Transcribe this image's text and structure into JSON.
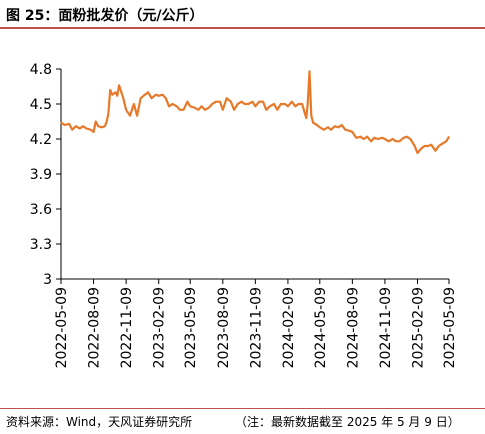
{
  "header": {
    "title": "图 25：面粉批发价（元/公斤）"
  },
  "footer": {
    "source": "资料来源：Wind，天风证券研究所",
    "note": "（注：最新数据截至 2025 年 5 月 9 日）"
  },
  "colors": {
    "line": "#e67a2a",
    "rule": "#c0504d",
    "axis": "#000000"
  },
  "chart_data": {
    "type": "line",
    "title": "图 25：面粉批发价（元/公斤）",
    "xlabel": "",
    "ylabel": "",
    "ylim": [
      3,
      4.8
    ],
    "grid": false,
    "y_ticks": [
      "4.8",
      "4.5",
      "4.2",
      "3.9",
      "3.6",
      "3.3",
      "3"
    ],
    "x_ticks": [
      "2022-05-09",
      "2022-08-09",
      "2022-11-09",
      "2023-02-09",
      "2023-05-09",
      "2023-08-09",
      "2023-11-09",
      "2024-02-09",
      "2024-05-09",
      "2024-08-09",
      "2024-11-09",
      "2025-02-09",
      "2025-05-09"
    ],
    "series": [
      {
        "x": [
          "2022-05-09",
          "2022-05-20",
          "2022-06-01",
          "2022-06-10",
          "2022-06-20",
          "2022-07-01",
          "2022-07-10",
          "2022-07-20",
          "2022-08-01",
          "2022-08-09",
          "2022-08-15",
          "2022-08-22",
          "2022-09-01",
          "2022-09-10",
          "2022-09-15",
          "2022-09-20",
          "2022-09-25",
          "2022-10-01",
          "2022-10-10",
          "2022-10-15",
          "2022-10-20",
          "2022-11-01",
          "2022-11-09",
          "2022-11-20",
          "2022-12-01",
          "2022-12-10",
          "2022-12-20",
          "2023-01-01",
          "2023-01-10",
          "2023-01-20",
          "2023-02-01",
          "2023-02-09",
          "2023-02-20",
          "2023-03-01",
          "2023-03-10",
          "2023-03-20",
          "2023-04-01",
          "2023-04-10",
          "2023-04-20",
          "2023-05-01",
          "2023-05-09",
          "2023-05-20",
          "2023-06-01",
          "2023-06-10",
          "2023-06-20",
          "2023-07-01",
          "2023-07-10",
          "2023-07-20",
          "2023-08-01",
          "2023-08-09",
          "2023-08-20",
          "2023-09-01",
          "2023-09-10",
          "2023-09-20",
          "2023-10-01",
          "2023-10-10",
          "2023-10-20",
          "2023-11-01",
          "2023-11-09",
          "2023-11-20",
          "2023-12-01",
          "2023-12-10",
          "2023-12-20",
          "2024-01-01",
          "2024-01-10",
          "2024-01-20",
          "2024-02-01",
          "2024-02-09",
          "2024-02-20",
          "2024-03-01",
          "2024-03-10",
          "2024-03-20",
          "2024-04-01",
          "2024-04-05",
          "2024-04-10",
          "2024-04-15",
          "2024-04-20",
          "2024-05-01",
          "2024-05-09",
          "2024-05-20",
          "2024-06-01",
          "2024-06-10",
          "2024-06-20",
          "2024-07-01",
          "2024-07-10",
          "2024-07-20",
          "2024-08-01",
          "2024-08-09",
          "2024-08-20",
          "2024-09-01",
          "2024-09-10",
          "2024-09-20",
          "2024-10-01",
          "2024-10-10",
          "2024-10-20",
          "2024-11-01",
          "2024-11-09",
          "2024-11-20",
          "2024-12-01",
          "2024-12-10",
          "2024-12-20",
          "2025-01-01",
          "2025-01-10",
          "2025-01-20",
          "2025-02-01",
          "2025-02-09",
          "2025-02-20",
          "2025-03-01",
          "2025-03-10",
          "2025-03-20",
          "2025-04-01",
          "2025-04-10",
          "2025-04-20",
          "2025-05-01",
          "2025-05-09"
        ],
        "values": [
          4.34,
          4.32,
          4.33,
          4.28,
          4.31,
          4.29,
          4.31,
          4.29,
          4.28,
          4.26,
          4.35,
          4.31,
          4.3,
          4.31,
          4.35,
          4.42,
          4.62,
          4.58,
          4.6,
          4.57,
          4.66,
          4.55,
          4.45,
          4.4,
          4.5,
          4.4,
          4.55,
          4.58,
          4.6,
          4.55,
          4.58,
          4.57,
          4.58,
          4.55,
          4.48,
          4.5,
          4.48,
          4.45,
          4.45,
          4.52,
          4.48,
          4.47,
          4.45,
          4.48,
          4.45,
          4.47,
          4.5,
          4.52,
          4.52,
          4.45,
          4.55,
          4.52,
          4.45,
          4.5,
          4.52,
          4.5,
          4.5,
          4.52,
          4.48,
          4.52,
          4.52,
          4.45,
          4.48,
          4.5,
          4.45,
          4.5,
          4.5,
          4.48,
          4.52,
          4.48,
          4.5,
          4.5,
          4.38,
          4.5,
          4.78,
          4.4,
          4.34,
          4.32,
          4.3,
          4.28,
          4.3,
          4.28,
          4.31,
          4.3,
          4.32,
          4.28,
          4.27,
          4.26,
          4.21,
          4.22,
          4.2,
          4.22,
          4.18,
          4.21,
          4.2,
          4.21,
          4.2,
          4.18,
          4.2,
          4.18,
          4.18,
          4.21,
          4.22,
          4.2,
          4.14,
          4.08,
          4.12,
          4.14,
          4.14,
          4.15,
          4.1,
          4.14,
          4.16,
          4.18,
          4.22
        ]
      }
    ]
  }
}
